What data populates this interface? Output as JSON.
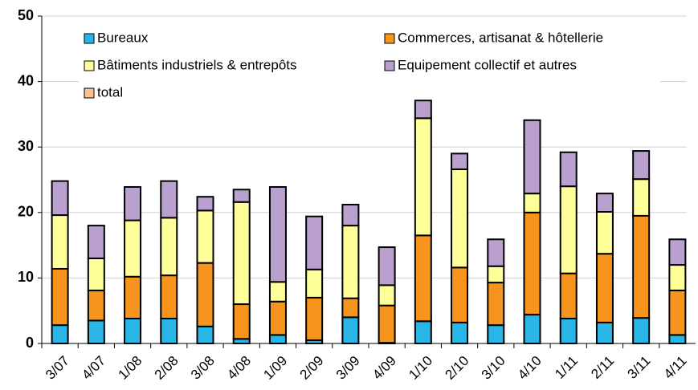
{
  "chart_data": {
    "type": "stacked-bar",
    "categories": [
      "3/07",
      "4/07",
      "1/08",
      "2/08",
      "3/08",
      "4/08",
      "1/09",
      "2/09",
      "3/09",
      "4/09",
      "1/10",
      "2/10",
      "3/10",
      "4/10",
      "1/11",
      "2/11",
      "3/11",
      "4/11"
    ],
    "series": [
      {
        "name": "Bureaux",
        "color": "#29b6e6",
        "values": [
          2.8,
          3.5,
          3.8,
          3.8,
          2.6,
          0.7,
          1.3,
          0.5,
          4.0,
          0.1,
          3.4,
          3.2,
          2.8,
          4.4,
          3.8,
          3.2,
          3.9,
          1.3
        ]
      },
      {
        "name": "Commerces, artisanat & hôtellerie",
        "color": "#f7941d",
        "values": [
          8.6,
          4.6,
          6.4,
          6.6,
          9.7,
          5.3,
          5.1,
          6.5,
          2.9,
          5.7,
          13.1,
          8.4,
          6.5,
          15.6,
          6.9,
          10.5,
          15.6,
          6.8
        ]
      },
      {
        "name": "Bâtiments  industriels & entrepôts",
        "color": "#ffff99",
        "values": [
          8.2,
          4.9,
          8.6,
          8.8,
          8.0,
          15.6,
          3.0,
          4.3,
          11.1,
          3.1,
          17.9,
          15.0,
          2.5,
          2.9,
          13.3,
          6.4,
          5.6,
          3.9
        ]
      },
      {
        "name": "Equipement collectif et autres",
        "color": "#b9a0cf",
        "values": [
          5.2,
          5.0,
          5.1,
          5.6,
          2.1,
          1.9,
          14.5,
          8.1,
          3.2,
          5.8,
          2.7,
          2.4,
          4.1,
          11.2,
          5.2,
          2.8,
          4.3,
          3.9
        ]
      },
      {
        "name": "total",
        "color": "#fbc08f",
        "values": [
          null,
          null,
          null,
          null,
          null,
          null,
          null,
          null,
          null,
          null,
          null,
          null,
          null,
          null,
          null,
          null,
          null,
          null
        ]
      }
    ],
    "ylim": [
      0,
      50
    ],
    "yticks": [
      0,
      10,
      20,
      30,
      40,
      50
    ],
    "grid": true
  }
}
